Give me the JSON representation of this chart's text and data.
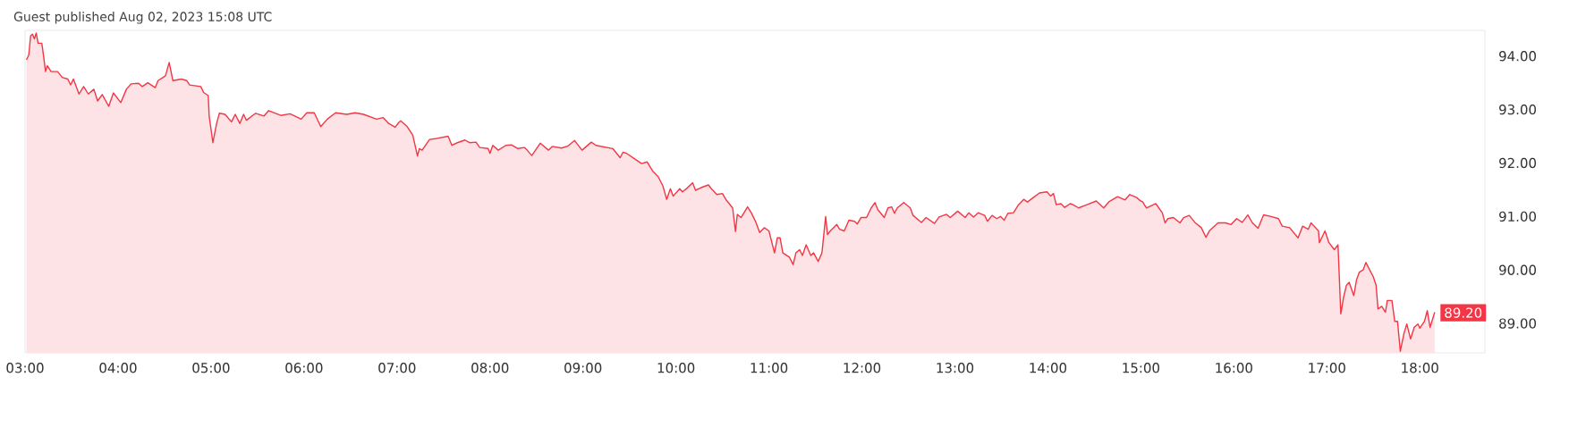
{
  "chart_data": {
    "type": "area",
    "title": "Guest published Aug 02, 2023 15:08 UTC",
    "x": [
      3.015,
      3.04,
      3.06,
      3.08,
      3.1,
      3.12,
      3.14,
      3.18,
      3.2,
      3.22,
      3.24,
      3.28,
      3.35,
      3.4,
      3.46,
      3.49,
      3.52,
      3.58,
      3.63,
      3.68,
      3.74,
      3.78,
      3.83,
      3.9,
      3.95,
      4.03,
      4.09,
      4.14,
      4.22,
      4.26,
      4.32,
      4.4,
      4.43,
      4.51,
      4.55,
      4.59,
      4.68,
      4.74,
      4.77,
      4.89,
      4.92,
      4.97,
      4.98,
      5.02,
      5.06,
      5.09,
      5.15,
      5.22,
      5.26,
      5.31,
      5.35,
      5.38,
      5.48,
      5.57,
      5.62,
      5.75,
      5.85,
      5.97,
      6.03,
      6.11,
      6.18,
      6.25,
      6.34,
      6.46,
      6.55,
      6.64,
      6.78,
      6.85,
      6.91,
      6.98,
      7.02,
      7.04,
      7.11,
      7.17,
      7.22,
      7.24,
      7.27,
      7.35,
      7.43,
      7.55,
      7.59,
      7.65,
      7.73,
      7.78,
      7.85,
      7.89,
      7.98,
      8.0,
      8.03,
      8.09,
      8.17,
      8.23,
      8.3,
      8.37,
      8.4,
      8.45,
      8.54,
      8.63,
      8.67,
      8.77,
      8.84,
      8.91,
      8.99,
      9.09,
      9.14,
      9.23,
      9.32,
      9.4,
      9.43,
      9.47,
      9.57,
      9.63,
      9.69,
      9.75,
      9.81,
      9.86,
      9.9,
      9.94,
      9.97,
      10.04,
      10.07,
      10.12,
      10.18,
      10.21,
      10.27,
      10.35,
      10.38,
      10.44,
      10.5,
      10.54,
      10.61,
      10.64,
      10.66,
      10.7,
      10.77,
      10.81,
      10.86,
      10.9,
      10.95,
      11.0,
      11.06,
      11.09,
      11.12,
      11.15,
      11.22,
      11.26,
      11.29,
      11.33,
      11.36,
      11.4,
      11.45,
      11.48,
      11.53,
      11.57,
      11.61,
      11.63,
      11.66,
      11.73,
      11.76,
      11.81,
      11.86,
      11.92,
      11.95,
      11.99,
      12.05,
      12.1,
      12.14,
      12.17,
      12.24,
      12.28,
      12.32,
      12.35,
      12.38,
      12.45,
      12.52,
      12.55,
      12.64,
      12.69,
      12.78,
      12.83,
      12.91,
      12.95,
      13.03,
      13.11,
      13.15,
      13.2,
      13.25,
      13.32,
      13.35,
      13.4,
      13.45,
      13.49,
      13.53,
      13.57,
      13.63,
      13.68,
      13.74,
      13.78,
      13.84,
      13.91,
      13.99,
      14.03,
      14.06,
      14.09,
      14.14,
      14.18,
      14.24,
      14.27,
      14.33,
      14.42,
      14.52,
      14.6,
      14.66,
      14.75,
      14.83,
      14.88,
      14.95,
      14.99,
      15.02,
      15.06,
      15.11,
      15.16,
      15.23,
      15.26,
      15.29,
      15.35,
      15.42,
      15.46,
      15.52,
      15.58,
      15.65,
      15.7,
      15.74,
      15.83,
      15.91,
      15.97,
      16.03,
      16.09,
      16.15,
      16.2,
      16.26,
      16.32,
      16.4,
      16.48,
      16.52,
      16.6,
      16.69,
      16.74,
      16.8,
      16.83,
      16.91,
      16.92,
      16.98,
      17.02,
      17.08,
      17.12,
      17.15,
      17.18,
      17.21,
      17.24,
      17.29,
      17.32,
      17.35,
      17.39,
      17.42,
      17.5,
      17.53,
      17.55,
      17.59,
      17.63,
      17.65,
      17.7,
      17.73,
      17.76,
      17.79,
      17.83,
      17.86,
      17.9,
      17.94,
      17.98,
      18.0,
      18.05,
      18.08,
      18.11,
      18.13,
      18.16
    ],
    "series": [
      {
        "color": "#f23645",
        "values": [
          93.93,
          94.02,
          94.38,
          94.41,
          94.32,
          94.43,
          94.24,
          94.24,
          93.99,
          93.71,
          93.82,
          93.71,
          93.71,
          93.6,
          93.57,
          93.46,
          93.57,
          93.29,
          93.43,
          93.29,
          93.38,
          93.16,
          93.28,
          93.06,
          93.31,
          93.13,
          93.38,
          93.48,
          93.49,
          93.43,
          93.5,
          93.41,
          93.54,
          93.63,
          93.88,
          93.54,
          93.57,
          93.54,
          93.46,
          93.43,
          93.32,
          93.26,
          92.88,
          92.38,
          92.74,
          92.93,
          92.91,
          92.77,
          92.91,
          92.74,
          92.91,
          92.8,
          92.93,
          92.88,
          92.98,
          92.89,
          92.92,
          92.82,
          92.94,
          92.94,
          92.68,
          92.82,
          92.94,
          92.91,
          92.94,
          92.91,
          92.82,
          92.85,
          92.74,
          92.67,
          92.76,
          92.79,
          92.68,
          92.52,
          92.13,
          92.27,
          92.24,
          92.44,
          92.46,
          92.5,
          92.33,
          92.38,
          92.43,
          92.38,
          92.39,
          92.29,
          92.27,
          92.18,
          92.33,
          92.24,
          92.33,
          92.34,
          92.27,
          92.29,
          92.24,
          92.14,
          92.37,
          92.24,
          92.31,
          92.28,
          92.32,
          92.42,
          92.24,
          92.39,
          92.33,
          92.3,
          92.27,
          92.1,
          92.2,
          92.18,
          92.06,
          91.99,
          92.02,
          91.85,
          91.74,
          91.57,
          91.32,
          91.52,
          91.38,
          91.52,
          91.46,
          91.53,
          91.63,
          91.49,
          91.54,
          91.59,
          91.52,
          91.41,
          91.43,
          91.31,
          91.16,
          90.72,
          91.04,
          90.98,
          91.18,
          91.07,
          90.89,
          90.7,
          90.79,
          90.73,
          90.32,
          90.6,
          90.6,
          90.32,
          90.24,
          90.1,
          90.32,
          90.38,
          90.27,
          90.47,
          90.27,
          90.32,
          90.16,
          90.32,
          91.0,
          90.66,
          90.73,
          90.85,
          90.76,
          90.73,
          90.93,
          90.91,
          90.86,
          90.98,
          90.98,
          91.16,
          91.26,
          91.13,
          90.98,
          91.16,
          91.18,
          91.06,
          91.16,
          91.26,
          91.16,
          91.02,
          90.89,
          90.98,
          90.87,
          90.99,
          91.04,
          90.98,
          91.1,
          90.98,
          91.07,
          90.99,
          91.07,
          91.02,
          90.91,
          91.02,
          90.96,
          91.0,
          90.93,
          91.06,
          91.07,
          91.21,
          91.32,
          91.27,
          91.35,
          91.44,
          91.46,
          91.38,
          91.43,
          91.22,
          91.24,
          91.17,
          91.24,
          91.22,
          91.16,
          91.22,
          91.29,
          91.16,
          91.28,
          91.37,
          91.31,
          91.41,
          91.36,
          91.3,
          91.27,
          91.16,
          91.2,
          91.24,
          91.07,
          90.88,
          90.96,
          90.98,
          90.88,
          90.98,
          91.02,
          90.89,
          90.79,
          90.61,
          90.74,
          90.88,
          90.88,
          90.85,
          90.96,
          90.89,
          91.03,
          90.88,
          90.78,
          91.03,
          91.0,
          90.96,
          90.82,
          90.79,
          90.6,
          90.82,
          90.76,
          90.88,
          90.73,
          90.51,
          90.73,
          90.52,
          90.38,
          90.47,
          89.18,
          89.49,
          89.71,
          89.77,
          89.52,
          89.82,
          89.96,
          90.0,
          90.14,
          89.87,
          89.71,
          89.27,
          89.32,
          89.21,
          89.43,
          89.43,
          89.04,
          89.04,
          88.48,
          88.82,
          88.99,
          88.71,
          88.93,
          88.99,
          88.91,
          89.04,
          89.24,
          88.93,
          89.04,
          89.21
        ]
      }
    ],
    "xlim": [
      3.0,
      18.7
    ],
    "ylim": [
      88.45,
      94.48
    ],
    "xticks": [
      {
        "value": 3,
        "label": "03:00"
      },
      {
        "value": 4,
        "label": "04:00"
      },
      {
        "value": 5,
        "label": "05:00"
      },
      {
        "value": 6,
        "label": "06:00"
      },
      {
        "value": 7,
        "label": "07:00"
      },
      {
        "value": 8,
        "label": "08:00"
      },
      {
        "value": 9,
        "label": "09:00"
      },
      {
        "value": 10,
        "label": "10:00"
      },
      {
        "value": 11,
        "label": "11:00"
      },
      {
        "value": 12,
        "label": "12:00"
      },
      {
        "value": 13,
        "label": "13:00"
      },
      {
        "value": 14,
        "label": "14:00"
      },
      {
        "value": 15,
        "label": "15:00"
      },
      {
        "value": 16,
        "label": "16:00"
      },
      {
        "value": 17,
        "label": "17:00"
      },
      {
        "value": 18,
        "label": "18:00"
      }
    ],
    "yticks": [
      {
        "value": 89,
        "label": "89.00"
      },
      {
        "value": 90,
        "label": "90.00"
      },
      {
        "value": 91,
        "label": "91.00"
      },
      {
        "value": 92,
        "label": "92.00"
      },
      {
        "value": 93,
        "label": "93.00"
      },
      {
        "value": 94,
        "label": "94.00"
      }
    ],
    "annotations": [
      {
        "text": "89.20",
        "x": 18.16,
        "y": 89.2
      }
    ]
  }
}
